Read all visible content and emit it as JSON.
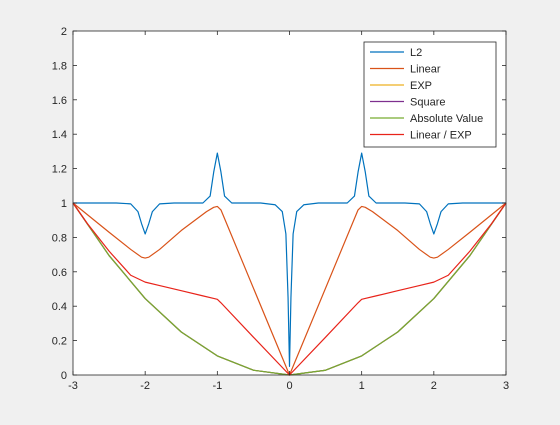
{
  "chart_data": {
    "type": "line",
    "title": "",
    "xlabel": "",
    "ylabel": "",
    "xlim": [
      -3,
      3
    ],
    "ylim": [
      0,
      2
    ],
    "x_ticks": [
      "-3",
      "-2",
      "-1",
      "0",
      "1",
      "2",
      "3"
    ],
    "y_ticks": [
      "0",
      "0.2",
      "0.4",
      "0.6",
      "0.8",
      "1",
      "1.2",
      "1.4",
      "1.6",
      "1.8",
      "2"
    ],
    "grid": false,
    "legend_position": "top-right",
    "series": [
      {
        "name": "L2",
        "color": "#0072BD",
        "x": [
          -3,
          -2.4,
          -2.2,
          -2.1,
          -2.05,
          -2.0,
          -1.95,
          -1.9,
          -1.8,
          -1.6,
          -1.2,
          -1.1,
          -1.05,
          -1.0,
          -0.95,
          -0.9,
          -0.8,
          -0.4,
          -0.2,
          -0.1,
          -0.05,
          -0.02,
          0,
          0.02,
          0.05,
          0.1,
          0.2,
          0.4,
          0.8,
          0.9,
          0.95,
          1.0,
          1.05,
          1.1,
          1.2,
          1.6,
          1.8,
          1.9,
          1.95,
          2.0,
          2.05,
          2.1,
          2.2,
          2.4,
          3
        ],
        "y": [
          1,
          1,
          0.995,
          0.95,
          0.88,
          0.82,
          0.88,
          0.95,
          0.995,
          1,
          1,
          1.04,
          1.18,
          1.29,
          1.18,
          1.04,
          1,
          1,
          0.99,
          0.95,
          0.82,
          0.45,
          0.05,
          0.45,
          0.82,
          0.95,
          0.99,
          1,
          1,
          1.04,
          1.18,
          1.29,
          1.18,
          1.04,
          1,
          1,
          0.995,
          0.95,
          0.88,
          0.82,
          0.88,
          0.95,
          0.995,
          1,
          1
        ]
      },
      {
        "name": "Linear",
        "color": "#D95319",
        "x": [
          -3,
          -2.5,
          -2.2,
          -2.05,
          -2.0,
          -1.95,
          -1.8,
          -1.5,
          -1.15,
          -1.05,
          -1.0,
          -0.95,
          0,
          0.95,
          1.0,
          1.05,
          1.15,
          1.5,
          1.8,
          1.95,
          2.0,
          2.05,
          2.2,
          2.5,
          3
        ],
        "y": [
          1,
          0.83,
          0.73,
          0.685,
          0.68,
          0.685,
          0.73,
          0.84,
          0.95,
          0.975,
          0.98,
          0.96,
          0,
          0.96,
          0.98,
          0.975,
          0.95,
          0.84,
          0.73,
          0.685,
          0.68,
          0.685,
          0.73,
          0.83,
          1
        ]
      },
      {
        "name": "EXP",
        "color": "#EDB120",
        "x": [
          -3,
          -2.5,
          -2,
          -1.5,
          -1,
          -0.5,
          0,
          0.5,
          1,
          1.5,
          2,
          2.5,
          3
        ],
        "y": [
          1,
          0.6944,
          0.4444,
          0.25,
          0.1111,
          0.0278,
          0,
          0.0278,
          0.1111,
          0.25,
          0.4444,
          0.6944,
          1
        ]
      },
      {
        "name": "Square",
        "color": "#7E2F8E",
        "x": [
          -3,
          -2.5,
          -2,
          -1.5,
          -1,
          -0.5,
          0,
          0.5,
          1,
          1.5,
          2,
          2.5,
          3
        ],
        "y": [
          1,
          0.6944,
          0.4444,
          0.25,
          0.1111,
          0.0278,
          0,
          0.0278,
          0.1111,
          0.25,
          0.4444,
          0.6944,
          1
        ]
      },
      {
        "name": "Absolute Value",
        "color": "#77AC30",
        "x": [
          -3,
          -2.5,
          -2,
          -1.5,
          -1,
          -0.5,
          0,
          0.5,
          1,
          1.5,
          2,
          2.5,
          3
        ],
        "y": [
          1,
          0.6944,
          0.4444,
          0.25,
          0.1111,
          0.0278,
          0,
          0.0278,
          0.1111,
          0.25,
          0.4444,
          0.6944,
          1
        ]
      },
      {
        "name": "Linear / EXP",
        "color": "#E8231A",
        "x": [
          -3,
          -2.8,
          -2.5,
          -2.2,
          -2.0,
          -1.8,
          -1.5,
          -1.2,
          -1.05,
          -1.0,
          -0.95,
          -0.5,
          0,
          0.5,
          0.95,
          1.0,
          1.05,
          1.2,
          1.5,
          1.8,
          2.0,
          2.2,
          2.5,
          2.8,
          3
        ],
        "y": [
          1,
          0.88,
          0.72,
          0.58,
          0.54,
          0.52,
          0.49,
          0.46,
          0.445,
          0.44,
          0.42,
          0.22,
          0,
          0.22,
          0.42,
          0.44,
          0.445,
          0.46,
          0.49,
          0.52,
          0.54,
          0.58,
          0.72,
          0.88,
          1
        ]
      }
    ]
  }
}
